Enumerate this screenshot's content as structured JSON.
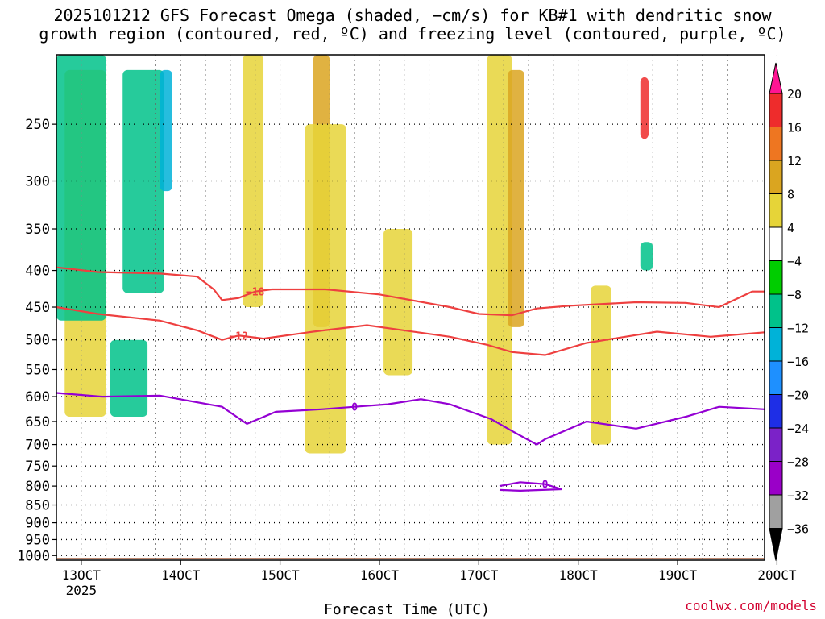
{
  "title_line1": "2025101212 GFS Forecast Omega (shaded, −cm/s) for KB#1 with dendritic snow",
  "title_line2": "growth region (contoured, red, ºC) and freezing level (contoured, purple, ºC)",
  "credit": "coolwx.com/models",
  "chart_data": {
    "type": "heatmap",
    "title": "2025101212 GFS Forecast Omega (shaded, −cm/s) for KB#1 with dendritic snow growth region (contoured, red, ºC) and freezing level (contoured, purple, ºC)",
    "xlabel": "Forecast Time (UTC)",
    "ylabel": "",
    "x_ticks": [
      "13OCT",
      "14OCT",
      "15OCT",
      "16OCT",
      "17OCT",
      "18OCT",
      "19OCT",
      "20OCT"
    ],
    "x_year_label": "2025",
    "xlim_hours": [
      0,
      171
    ],
    "y_ticks": [
      250,
      300,
      350,
      400,
      450,
      500,
      550,
      600,
      650,
      700,
      750,
      800,
      850,
      900,
      950,
      1000
    ],
    "ylim_hpa": [
      200,
      1015
    ],
    "colorbar": {
      "labels": [
        "20",
        "16",
        "12",
        "8",
        "4",
        "−4",
        "−8",
        "−12",
        "−16",
        "−20",
        "−24",
        "−28",
        "−32",
        "−36"
      ],
      "colors": [
        "#ff1493",
        "#ee2c2c",
        "#ee7621",
        "#daa520",
        "#e6d438",
        "#ffffff",
        "#00cd00",
        "#00c28a",
        "#00b2d8",
        "#1e90ff",
        "#1e2ee6",
        "#7b22c8",
        "#9a00c8",
        "#a0a0a0",
        "#000000"
      ]
    },
    "contours": [
      {
        "name": "-18",
        "color": "#ee4040",
        "label": "−18",
        "points": [
          [
            0,
            396
          ],
          [
            10,
            402
          ],
          [
            25,
            404
          ],
          [
            34,
            408
          ],
          [
            38,
            425
          ],
          [
            40,
            440
          ],
          [
            44,
            437
          ],
          [
            48,
            428
          ],
          [
            52,
            425
          ],
          [
            65,
            425
          ],
          [
            78,
            432
          ],
          [
            95,
            450
          ],
          [
            102,
            460
          ],
          [
            110,
            462
          ],
          [
            116,
            452
          ],
          [
            124,
            448
          ],
          [
            140,
            443
          ],
          [
            152,
            444
          ],
          [
            160,
            450
          ],
          [
            168,
            428
          ],
          [
            171,
            428
          ]
        ]
      },
      {
        "name": "-12",
        "color": "#ee4040",
        "label": "−12",
        "points": [
          [
            0,
            450
          ],
          [
            10,
            460
          ],
          [
            25,
            470
          ],
          [
            34,
            485
          ],
          [
            40,
            500
          ],
          [
            44,
            493
          ],
          [
            50,
            498
          ],
          [
            62,
            487
          ],
          [
            75,
            477
          ],
          [
            95,
            495
          ],
          [
            104,
            508
          ],
          [
            110,
            520
          ],
          [
            118,
            525
          ],
          [
            128,
            505
          ],
          [
            145,
            487
          ],
          [
            158,
            495
          ],
          [
            171,
            488
          ]
        ]
      },
      {
        "name": "0",
        "color": "#9400d3",
        "label": "0",
        "points": [
          [
            0,
            593
          ],
          [
            11,
            600
          ],
          [
            25,
            598
          ],
          [
            40,
            620
          ],
          [
            46,
            655
          ],
          [
            53,
            630
          ],
          [
            64,
            625
          ],
          [
            72,
            620
          ],
          [
            80,
            615
          ],
          [
            88,
            605
          ],
          [
            95,
            615
          ],
          [
            105,
            645
          ],
          [
            110,
            670
          ],
          [
            116,
            700
          ],
          [
            118,
            688
          ],
          [
            128,
            650
          ],
          [
            140,
            665
          ],
          [
            152,
            640
          ],
          [
            160,
            620
          ],
          [
            171,
            625
          ]
        ]
      },
      {
        "name": "0-island",
        "color": "#9400d3",
        "label": "0",
        "points": [
          [
            107,
            800
          ],
          [
            112,
            790
          ],
          [
            118,
            795
          ],
          [
            122,
            808
          ],
          [
            112,
            812
          ],
          [
            107,
            810
          ]
        ]
      }
    ],
    "omega_regions": [
      {
        "value": 6,
        "t": [
          2,
          12
        ],
        "p": [
          210,
          640
        ]
      },
      {
        "value": -8,
        "t": [
          0,
          12
        ],
        "p": [
          200,
          470
        ]
      },
      {
        "value": -8,
        "t": [
          16,
          26
        ],
        "p": [
          210,
          430
        ]
      },
      {
        "value": -8,
        "t": [
          13,
          22
        ],
        "p": [
          500,
          640
        ]
      },
      {
        "value": -12,
        "t": [
          25,
          28
        ],
        "p": [
          210,
          310
        ]
      },
      {
        "value": 6,
        "t": [
          45,
          50
        ],
        "p": [
          200,
          450
        ]
      },
      {
        "value": 10,
        "t": [
          62,
          66
        ],
        "p": [
          200,
          480
        ]
      },
      {
        "value": 6,
        "t": [
          60,
          70
        ],
        "p": [
          250,
          720
        ]
      },
      {
        "value": 6,
        "t": [
          79,
          86
        ],
        "p": [
          350,
          560
        ]
      },
      {
        "value": 6,
        "t": [
          104,
          110
        ],
        "p": [
          200,
          700
        ]
      },
      {
        "value": 10,
        "t": [
          109,
          113
        ],
        "p": [
          210,
          480
        ]
      },
      {
        "value": 6,
        "t": [
          129,
          134
        ],
        "p": [
          420,
          700
        ]
      },
      {
        "value": 18,
        "t": [
          141,
          143
        ],
        "p": [
          215,
          262
        ]
      },
      {
        "value": -8,
        "t": [
          141,
          144
        ],
        "p": [
          365,
          400
        ]
      }
    ],
    "ground_pressure_hpa": 1008
  }
}
